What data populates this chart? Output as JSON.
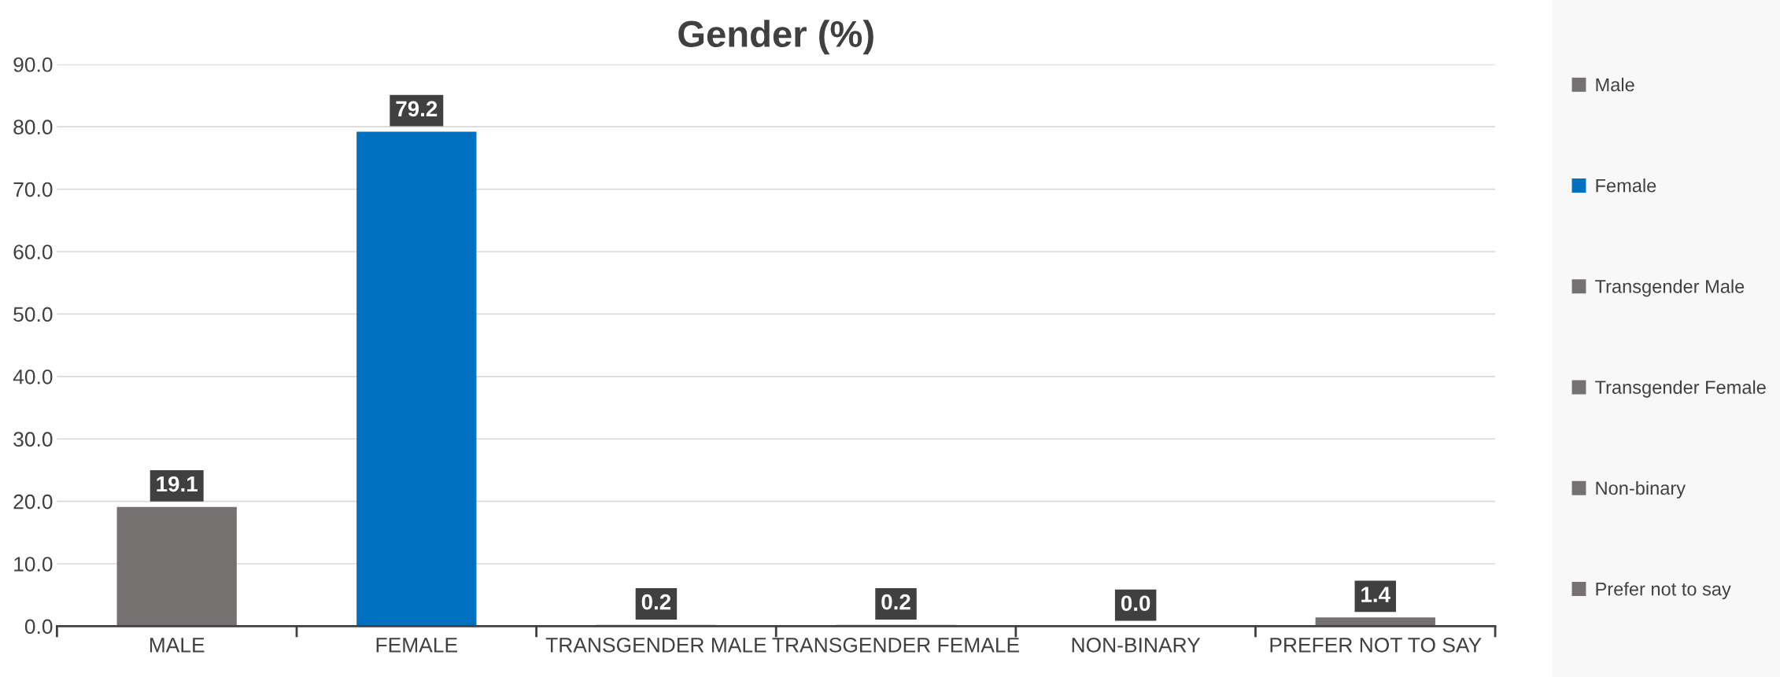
{
  "chart_data": {
    "type": "bar",
    "title": "Gender (%)",
    "categories": [
      "MALE",
      "FEMALE",
      "TRANSGENDER MALE",
      "TRANSGENDER FEMALE",
      "NON-BINARY",
      "PREFER NOT TO SAY"
    ],
    "series": [
      {
        "name": "Male",
        "color": "#767171",
        "values": [
          19.1,
          null,
          null,
          null,
          null,
          null
        ],
        "value_labels": [
          "19.1",
          null,
          null,
          null,
          null,
          null
        ]
      },
      {
        "name": "Female",
        "color": "#0070c0",
        "values": [
          null,
          79.2,
          null,
          null,
          null,
          null
        ],
        "value_labels": [
          null,
          "79.2",
          null,
          null,
          null,
          null
        ]
      },
      {
        "name": "Transgender Male",
        "color": "#767171",
        "values": [
          null,
          null,
          0.2,
          null,
          null,
          null
        ],
        "value_labels": [
          null,
          null,
          "0.2",
          null,
          null,
          null
        ]
      },
      {
        "name": "Transgender Female",
        "color": "#767171",
        "values": [
          null,
          null,
          null,
          0.2,
          null,
          null
        ],
        "value_labels": [
          null,
          null,
          null,
          "0.2",
          null,
          null
        ]
      },
      {
        "name": "Non-binary",
        "color": "#767171",
        "values": [
          null,
          null,
          null,
          null,
          0.0,
          null
        ],
        "value_labels": [
          null,
          null,
          null,
          null,
          "0.0",
          null
        ]
      },
      {
        "name": "Prefer not to say",
        "color": "#767171",
        "values": [
          null,
          null,
          null,
          null,
          null,
          1.4
        ],
        "value_labels": [
          null,
          null,
          null,
          null,
          null,
          "1.4"
        ]
      }
    ],
    "ylim": [
      0,
      90
    ],
    "yticks": [
      {
        "value": 0,
        "label": "0.0"
      },
      {
        "value": 10,
        "label": "10.0"
      },
      {
        "value": 20,
        "label": "20.0"
      },
      {
        "value": 30,
        "label": "30.0"
      },
      {
        "value": 40,
        "label": "40.0"
      },
      {
        "value": 50,
        "label": "50.0"
      },
      {
        "value": 60,
        "label": "60.0"
      },
      {
        "value": 70,
        "label": "70.0"
      },
      {
        "value": 80,
        "label": "80.0"
      },
      {
        "value": 90,
        "label": "90.0"
      }
    ],
    "grid": "y",
    "legend": "right"
  }
}
